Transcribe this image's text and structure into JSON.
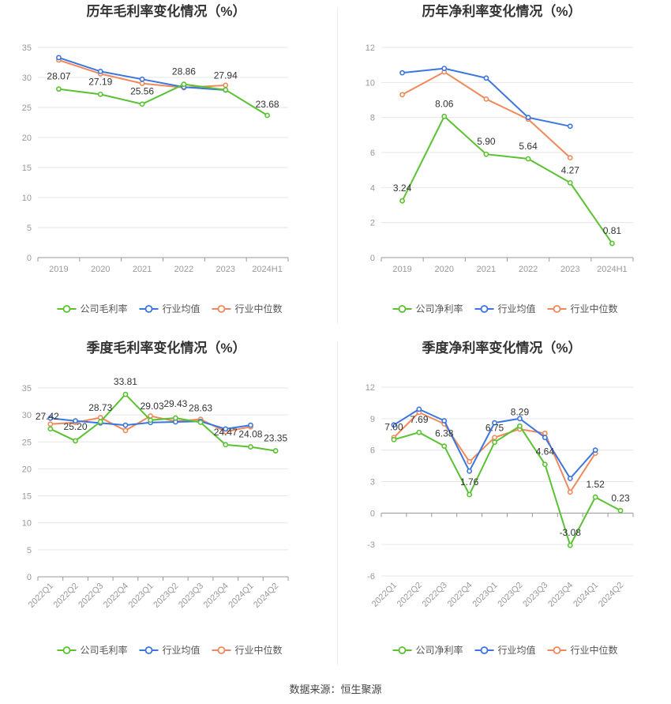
{
  "source_label": "数据来源：恒生聚源",
  "colors": {
    "company": "#5ac232",
    "avg": "#3b76e0",
    "median": "#f0895a",
    "grid": "#e6e6e6",
    "axis": "#999999",
    "tick": "#999999",
    "label": "#333333",
    "title": "#333333"
  },
  "chart_data": [
    {
      "type": "line",
      "title": "历年毛利率变化情况（%）",
      "categories": [
        "2019",
        "2020",
        "2021",
        "2022",
        "2023",
        "2024H1"
      ],
      "ylim": [
        0,
        35
      ],
      "yticks": [
        0,
        5,
        10,
        15,
        20,
        25,
        30,
        35
      ],
      "series": [
        {
          "name": "公司毛利率",
          "key": "company",
          "values": [
            28.07,
            27.19,
            25.56,
            28.86,
            27.94,
            23.68
          ],
          "labels": true
        },
        {
          "name": "行业均值",
          "key": "avg",
          "values": [
            33.3,
            31.0,
            29.7,
            28.4,
            27.9,
            null
          ],
          "labels": false
        },
        {
          "name": "行业中位数",
          "key": "median",
          "values": [
            32.9,
            30.6,
            29.0,
            28.3,
            28.7,
            null
          ],
          "labels": false
        }
      ],
      "grid": true,
      "legend": "bottom"
    },
    {
      "type": "line",
      "title": "历年净利率变化情况（%）",
      "categories": [
        "2019",
        "2020",
        "2021",
        "2022",
        "2023",
        "2024H1"
      ],
      "ylim": [
        0,
        12
      ],
      "yticks": [
        0,
        2,
        4,
        6,
        8,
        10,
        12
      ],
      "series": [
        {
          "name": "公司净利率",
          "key": "company",
          "values": [
            3.24,
            8.06,
            5.9,
            5.64,
            4.27,
            0.81
          ],
          "labels": true
        },
        {
          "name": "行业均值",
          "key": "avg",
          "values": [
            10.55,
            10.8,
            10.25,
            8.0,
            7.5,
            null
          ],
          "labels": false
        },
        {
          "name": "行业中位数",
          "key": "median",
          "values": [
            9.3,
            10.6,
            9.05,
            7.9,
            5.7,
            null
          ],
          "labels": false
        }
      ],
      "grid": true,
      "legend": "bottom"
    },
    {
      "type": "line",
      "title": "季度毛利率变化情况（%）",
      "categories": [
        "2022Q1",
        "2022Q2",
        "2022Q3",
        "2022Q4",
        "2023Q1",
        "2023Q2",
        "2023Q3",
        "2023Q4",
        "2024Q1",
        "2024Q2"
      ],
      "ylim": [
        0,
        35
      ],
      "yticks": [
        0,
        5,
        10,
        15,
        20,
        25,
        30,
        35
      ],
      "series": [
        {
          "name": "公司毛利率",
          "key": "company",
          "values": [
            27.42,
            25.2,
            28.73,
            33.81,
            29.03,
            29.43,
            28.63,
            24.47,
            24.08,
            23.35
          ],
          "labels": true
        },
        {
          "name": "行业均值",
          "key": "avg",
          "values": [
            29.4,
            28.9,
            28.5,
            28.1,
            28.6,
            28.7,
            28.8,
            27.4,
            28.1,
            null
          ],
          "labels": false
        },
        {
          "name": "行业中位数",
          "key": "median",
          "values": [
            28.3,
            28.6,
            29.5,
            27.1,
            29.8,
            28.8,
            29.2,
            26.9,
            27.8,
            null
          ],
          "labels": false
        }
      ],
      "grid": true,
      "legend": "bottom"
    },
    {
      "type": "line",
      "title": "季度净利率变化情况（%）",
      "categories": [
        "2022Q1",
        "2022Q2",
        "2022Q3",
        "2022Q4",
        "2023Q1",
        "2023Q2",
        "2023Q3",
        "2023Q4",
        "2024Q1",
        "2024Q2"
      ],
      "ylim": [
        -6,
        12
      ],
      "yticks": [
        -6,
        -3,
        0,
        3,
        6,
        9,
        12
      ],
      "series": [
        {
          "name": "公司净利率",
          "key": "company",
          "values": [
            7.0,
            7.69,
            6.38,
            1.76,
            6.75,
            8.29,
            4.64,
            -3.08,
            1.52,
            0.23
          ],
          "labels": true
        },
        {
          "name": "行业均值",
          "key": "avg",
          "values": [
            8.4,
            9.9,
            8.8,
            4.0,
            8.6,
            9.0,
            7.2,
            3.3,
            6.0,
            null
          ],
          "labels": false
        },
        {
          "name": "行业中位数",
          "key": "median",
          "values": [
            7.2,
            9.6,
            8.5,
            4.9,
            7.2,
            8.0,
            7.6,
            2.0,
            5.7,
            null
          ],
          "labels": false
        }
      ],
      "grid": true,
      "legend": "bottom"
    }
  ]
}
